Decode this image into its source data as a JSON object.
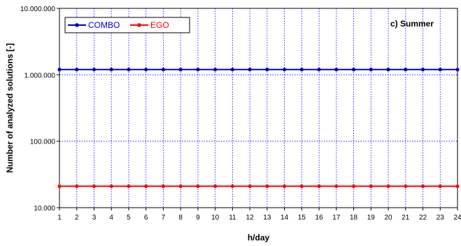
{
  "chart_data": {
    "type": "line",
    "title": "",
    "annotation": "c) Summer",
    "xlabel": "h/day",
    "ylabel": "Number of analyzed solutions [-]",
    "x": [
      1,
      2,
      3,
      4,
      5,
      6,
      7,
      8,
      9,
      10,
      11,
      12,
      13,
      14,
      15,
      16,
      17,
      18,
      19,
      20,
      21,
      22,
      23,
      24
    ],
    "y_scale": "log",
    "ylim": [
      10000,
      10000000
    ],
    "y_ticks": [
      10000,
      100000,
      1000000,
      10000000
    ],
    "y_tick_labels": [
      "10.000",
      "100.000",
      "1.000.000",
      "10.000.000"
    ],
    "grid": true,
    "legend_position": "top-left",
    "series": [
      {
        "name": "COMBO",
        "color": "#0000c0",
        "values": [
          1200000,
          1200000,
          1200000,
          1200000,
          1200000,
          1200000,
          1200000,
          1200000,
          1200000,
          1200000,
          1200000,
          1200000,
          1200000,
          1200000,
          1200000,
          1200000,
          1200000,
          1200000,
          1200000,
          1200000,
          1200000,
          1200000,
          1200000,
          1200000
        ]
      },
      {
        "name": "EGO",
        "color": "#ff0000",
        "values": [
          21000,
          21000,
          21000,
          21000,
          21000,
          21000,
          21000,
          21000,
          21000,
          21000,
          21000,
          21000,
          21000,
          21000,
          21000,
          21000,
          21000,
          21000,
          21000,
          21000,
          21000,
          21000,
          21000,
          21000
        ]
      }
    ]
  }
}
